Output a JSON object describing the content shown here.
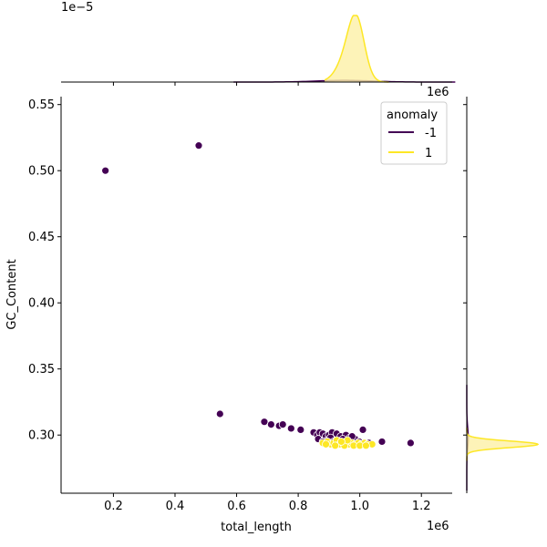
{
  "chart_data": {
    "type": "scatter",
    "xlabel": "total_length",
    "ylabel": "GC_Content",
    "x_unit_label": "1e6",
    "marginal_unit_label": "1e−5",
    "right_marginal_unit_label": "1e6",
    "xlim": [
      30000,
      1300000
    ],
    "ylim": [
      0.256,
      0.556
    ],
    "x_ticks": [
      0.2,
      0.4,
      0.6,
      0.8,
      1.0,
      1.2
    ],
    "x_tick_labels": [
      "0.2",
      "0.4",
      "0.6",
      "0.8",
      "1.0",
      "1.2"
    ],
    "y_ticks": [
      0.3,
      0.35,
      0.4,
      0.45,
      0.5,
      0.55
    ],
    "y_tick_labels": [
      "0.30",
      "0.35",
      "0.40",
      "0.45",
      "0.50",
      "0.55"
    ],
    "grid": false,
    "legend": {
      "title": "anomaly",
      "position": "top-right",
      "entries": [
        {
          "label": "-1",
          "color": "#440154"
        },
        {
          "label": "1",
          "color": "#fde725"
        }
      ]
    },
    "series": [
      {
        "name": "-1",
        "color": "#440154",
        "points": [
          [
            174000,
            0.5
          ],
          [
            477000,
            0.519
          ],
          [
            546000,
            0.316
          ],
          [
            690000,
            0.31
          ],
          [
            712000,
            0.308
          ],
          [
            738000,
            0.307
          ],
          [
            750000,
            0.308
          ],
          [
            777000,
            0.305
          ],
          [
            808000,
            0.304
          ],
          [
            850000,
            0.302
          ],
          [
            862000,
            0.3
          ],
          [
            870000,
            0.302
          ],
          [
            880000,
            0.301
          ],
          [
            890000,
            0.299
          ],
          [
            900000,
            0.3
          ],
          [
            910000,
            0.302
          ],
          [
            925000,
            0.301
          ],
          [
            938000,
            0.299
          ],
          [
            955000,
            0.3
          ],
          [
            968000,
            0.298
          ],
          [
            985000,
            0.297
          ],
          [
            1010000,
            0.304
          ],
          [
            1030000,
            0.294
          ],
          [
            1072000,
            0.295
          ],
          [
            1165000,
            0.294
          ],
          [
            865000,
            0.297
          ],
          [
            895000,
            0.296
          ],
          [
            905000,
            0.298
          ],
          [
            945000,
            0.297
          ],
          [
            975000,
            0.299
          ],
          [
            998000,
            0.295
          ],
          [
            880000,
            0.295
          ],
          [
            915000,
            0.295
          ]
        ]
      },
      {
        "name": "1",
        "color": "#fde725",
        "points": [
          [
            880000,
            0.294
          ],
          [
            895000,
            0.295
          ],
          [
            905000,
            0.293
          ],
          [
            915000,
            0.294
          ],
          [
            925000,
            0.296
          ],
          [
            935000,
            0.293
          ],
          [
            945000,
            0.294
          ],
          [
            955000,
            0.295
          ],
          [
            965000,
            0.293
          ],
          [
            975000,
            0.294
          ],
          [
            985000,
            0.293
          ],
          [
            995000,
            0.294
          ],
          [
            1005000,
            0.293
          ],
          [
            1015000,
            0.294
          ],
          [
            1025000,
            0.293
          ],
          [
            1040000,
            0.293
          ],
          [
            920000,
            0.292
          ],
          [
            950000,
            0.292
          ],
          [
            980000,
            0.292
          ],
          [
            1000000,
            0.292
          ],
          [
            890000,
            0.293
          ],
          [
            960000,
            0.296
          ],
          [
            940000,
            0.295
          ],
          [
            1020000,
            0.292
          ]
        ]
      }
    ],
    "marginal_x": {
      "series": [
        {
          "name": "1",
          "color": "#fde725",
          "fill": "#fdf0a6",
          "peak_x": 990000,
          "spread": 26000,
          "relative_height": 1.0
        },
        {
          "name": "-1",
          "color": "#440154",
          "fill": "#e4d9ec",
          "peak_x": 950000,
          "spread": 90000,
          "relative_height": 0.025
        }
      ]
    },
    "marginal_y": {
      "series": [
        {
          "name": "1",
          "color": "#fde725",
          "fill": "#fdf0a6",
          "peak_y": 0.293,
          "spread": 0.0025,
          "relative_height": 1.0
        },
        {
          "name": "-1",
          "color": "#440154",
          "fill": "#e4d9ec",
          "peak_y": 0.298,
          "spread": 0.008,
          "relative_height": 0.02
        }
      ]
    }
  }
}
